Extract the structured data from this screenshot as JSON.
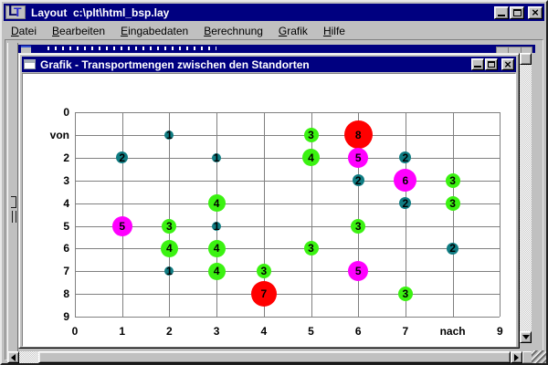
{
  "window": {
    "title": "Layout  c:\\plt\\html_bsp.lay",
    "logo": {
      "l": "L",
      "t": "T"
    },
    "controls": [
      "minimize",
      "maximize",
      "close"
    ]
  },
  "menu": {
    "items": [
      {
        "key": "D",
        "rest": "atei"
      },
      {
        "key": "B",
        "rest": "earbeiten"
      },
      {
        "key": "E",
        "rest": "ingabedaten"
      },
      {
        "key": "B",
        "rest": "erechnung"
      },
      {
        "key": "G",
        "rest": "rafik"
      },
      {
        "key": "H",
        "rest": "ilfe"
      }
    ]
  },
  "grafik_window": {
    "title": "Grafik - Transportmengen zwischen den Standorten",
    "controls": [
      "minimize",
      "maximize",
      "close"
    ]
  },
  "colors": {
    "titlebar": "#000080",
    "window_bg": "#C0C0C0",
    "plot_bg": "#FFFFFF",
    "grid": "#808080"
  },
  "chart_data": {
    "type": "scatter",
    "title": "Transportmengen zwischen den Standorten",
    "xlabel": "nach",
    "ylabel": "von",
    "xlim": [
      0,
      9
    ],
    "ylim": [
      0,
      9
    ],
    "grid": true,
    "x_ticks": [
      "0",
      "1",
      "2",
      "3",
      "4",
      "5",
      "6",
      "7",
      "nach",
      "9"
    ],
    "y_ticks": [
      "0",
      "von",
      "2",
      "3",
      "4",
      "5",
      "6",
      "7",
      "8",
      "9"
    ],
    "value_colors": {
      "1": "#0F7C82",
      "2": "#0F7C82",
      "3": "#3BF211",
      "4": "#3BF211",
      "5": "#FF00FF",
      "6": "#FF00FF",
      "7": "#FF0000",
      "8": "#FF0000"
    },
    "points": [
      {
        "x": 2,
        "y": 1,
        "v": 1
      },
      {
        "x": 5,
        "y": 1,
        "v": 3
      },
      {
        "x": 6,
        "y": 1,
        "v": 8
      },
      {
        "x": 1,
        "y": 2,
        "v": 2
      },
      {
        "x": 3,
        "y": 2,
        "v": 1
      },
      {
        "x": 5,
        "y": 2,
        "v": 4
      },
      {
        "x": 6,
        "y": 2,
        "v": 5
      },
      {
        "x": 7,
        "y": 2,
        "v": 2
      },
      {
        "x": 6,
        "y": 3,
        "v": 2
      },
      {
        "x": 7,
        "y": 3,
        "v": 6
      },
      {
        "x": 8,
        "y": 3,
        "v": 3
      },
      {
        "x": 3,
        "y": 4,
        "v": 4
      },
      {
        "x": 7,
        "y": 4,
        "v": 2
      },
      {
        "x": 8,
        "y": 4,
        "v": 3
      },
      {
        "x": 1,
        "y": 5,
        "v": 5
      },
      {
        "x": 2,
        "y": 5,
        "v": 3
      },
      {
        "x": 3,
        "y": 5,
        "v": 1
      },
      {
        "x": 6,
        "y": 5,
        "v": 3
      },
      {
        "x": 2,
        "y": 6,
        "v": 4
      },
      {
        "x": 3,
        "y": 6,
        "v": 4
      },
      {
        "x": 5,
        "y": 6,
        "v": 3
      },
      {
        "x": 8,
        "y": 6,
        "v": 2
      },
      {
        "x": 2,
        "y": 7,
        "v": 1
      },
      {
        "x": 3,
        "y": 7,
        "v": 4
      },
      {
        "x": 4,
        "y": 7,
        "v": 3
      },
      {
        "x": 6,
        "y": 7,
        "v": 5
      },
      {
        "x": 4,
        "y": 8,
        "v": 7
      },
      {
        "x": 7,
        "y": 8,
        "v": 3
      }
    ]
  }
}
